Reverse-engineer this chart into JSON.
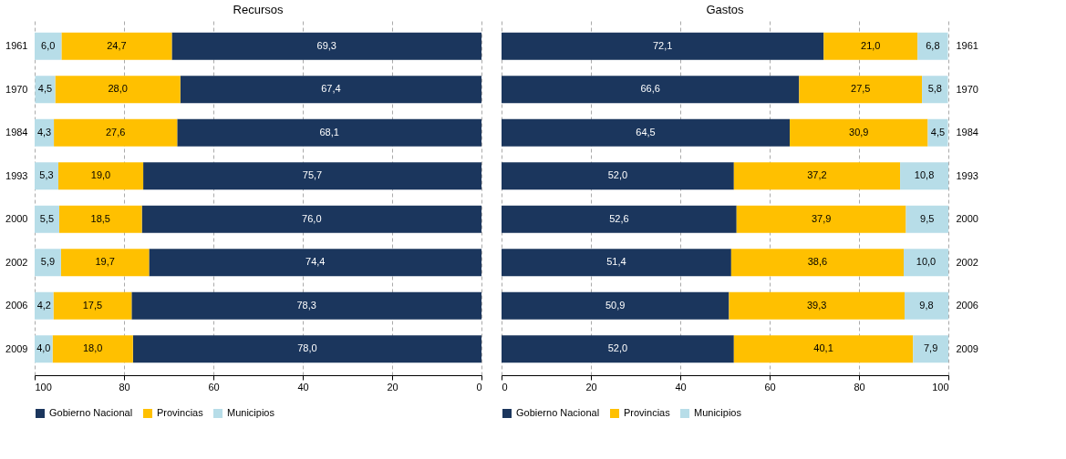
{
  "chart_data": [
    {
      "type": "bar",
      "title": "Recursos",
      "orientation": "horizontal",
      "stacked": true,
      "categories": [
        "1961",
        "1970",
        "1984",
        "1993",
        "2000",
        "2002",
        "2006",
        "2009"
      ],
      "series": [
        {
          "name": "Gobierno Nacional",
          "color": "#1b365d",
          "values": [
            69.3,
            67.4,
            68.1,
            75.7,
            76.0,
            74.4,
            78.3,
            78.0
          ],
          "value_labels": [
            "69,3",
            "67,4",
            "68,1",
            "75,7",
            "76,0",
            "74,4",
            "78,3",
            "78,0"
          ]
        },
        {
          "name": "Provincias",
          "color": "#ffc000",
          "values": [
            24.7,
            28.0,
            27.6,
            19.0,
            18.5,
            19.7,
            17.5,
            18.0
          ],
          "value_labels": [
            "24,7",
            "28,0",
            "27,6",
            "19,0",
            "18,5",
            "19,7",
            "17,5",
            "18,0"
          ]
        },
        {
          "name": "Municipios",
          "color": "#b7dde8",
          "values": [
            6.0,
            4.5,
            4.3,
            5.3,
            5.5,
            5.9,
            4.2,
            4.0
          ],
          "value_labels": [
            "6,0",
            "4,5",
            "4,3",
            "5,3",
            "5,5",
            "5,9",
            "4,2",
            "4,0"
          ]
        }
      ],
      "xlim": [
        100,
        0
      ],
      "xticks": [
        100,
        80,
        60,
        40,
        20,
        0
      ],
      "grid": "x",
      "legend": "bottom"
    },
    {
      "type": "bar",
      "title": "Gastos",
      "orientation": "horizontal",
      "stacked": true,
      "categories": [
        "1961",
        "1970",
        "1984",
        "1993",
        "2000",
        "2002",
        "2006",
        "2009"
      ],
      "series": [
        {
          "name": "Gobierno Nacional",
          "color": "#1b365d",
          "values": [
            72.1,
            66.6,
            64.5,
            52.0,
            52.6,
            51.4,
            50.9,
            52.0
          ],
          "value_labels": [
            "72,1",
            "66,6",
            "64,5",
            "52,0",
            "52,6",
            "51,4",
            "50,9",
            "52,0"
          ]
        },
        {
          "name": "Provincias",
          "color": "#ffc000",
          "values": [
            21.0,
            27.5,
            30.9,
            37.2,
            37.9,
            38.6,
            39.3,
            40.1
          ],
          "value_labels": [
            "21,0",
            "27,5",
            "30,9",
            "37,2",
            "37,9",
            "38,6",
            "39,3",
            "40,1"
          ]
        },
        {
          "name": "Municipios",
          "color": "#b7dde8",
          "values": [
            6.8,
            5.8,
            4.5,
            10.8,
            9.5,
            10.0,
            9.8,
            7.9
          ],
          "value_labels": [
            "6,8",
            "5,8",
            "4,5",
            "10,8",
            "9,5",
            "10,0",
            "9,8",
            "7,9"
          ]
        }
      ],
      "xlim": [
        0,
        100
      ],
      "xticks": [
        0,
        20,
        40,
        60,
        80,
        100
      ],
      "grid": "x",
      "legend": "bottom"
    }
  ]
}
